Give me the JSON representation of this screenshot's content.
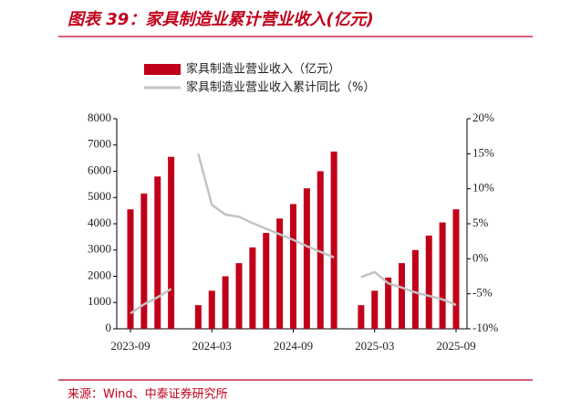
{
  "chart_data": {
    "type": "bar",
    "title": "图表 39：家具制造业累计营业收入(亿元)",
    "source": "来源：Wind、中泰证券研究所",
    "categories": [
      "2023-09",
      null,
      null,
      null,
      null,
      null,
      "2024-03",
      null,
      null,
      null,
      null,
      null,
      "2024-09",
      null,
      null,
      null,
      null,
      null,
      "2025-03",
      null,
      null,
      null,
      null,
      null,
      "2025-09"
    ],
    "series": [
      {
        "name": "家具制造业营业收入（亿元）",
        "type": "bar",
        "color": "#c0001a",
        "values": [
          4550,
          5150,
          5800,
          6550,
          null,
          900,
          1450,
          2000,
          2500,
          3100,
          3650,
          4200,
          4750,
          5350,
          6000,
          6750,
          null,
          900,
          1450,
          1950,
          2500,
          3000,
          3550,
          4050,
          4550
        ]
      },
      {
        "name": "家具制造业营业收入累计同比（%）",
        "type": "line",
        "axis": "y2",
        "color": "#c3c3c3",
        "values": [
          -7.8,
          -6.5,
          -5.5,
          -4.3,
          null,
          15.0,
          7.7,
          6.3,
          6.0,
          5.1,
          4.3,
          3.5,
          2.7,
          1.8,
          1.0,
          0.2,
          null,
          -2.6,
          -1.9,
          -3.5,
          -4.1,
          -4.8,
          -5.3,
          -5.8,
          -6.6
        ]
      }
    ],
    "ylim": [
      0,
      8000
    ],
    "yticks": [
      0,
      1000,
      2000,
      3000,
      4000,
      5000,
      6000,
      7000,
      8000
    ],
    "y2lim": [
      -10,
      20
    ],
    "y2ticks": [
      {
        "value": -10,
        "label": "-10%"
      },
      {
        "value": -5,
        "label": "-5%"
      },
      {
        "value": 0,
        "label": "0%"
      },
      {
        "value": 5,
        "label": "5%"
      },
      {
        "value": 10,
        "label": "10%"
      },
      {
        "value": 15,
        "label": "15%"
      },
      {
        "value": 20,
        "label": "20%"
      }
    ]
  }
}
